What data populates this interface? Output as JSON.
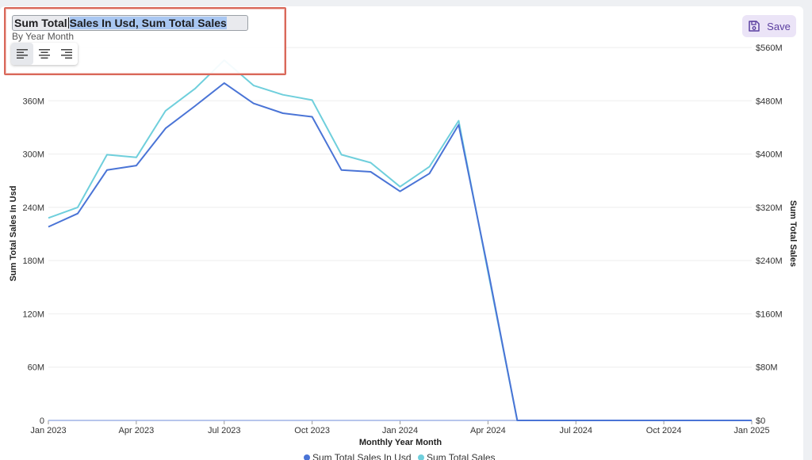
{
  "title_editor": {
    "title_plain": "Sum Total",
    "title_selected": "Sales In Usd, Sum Total Sales",
    "subtitle": "By Year Month",
    "align_options": [
      "align-left",
      "align-center",
      "align-right"
    ],
    "align_active": "align-left"
  },
  "toolbar": {
    "save_label": "Save"
  },
  "colors": {
    "series1": "#4a74d6",
    "series2": "#6fcfdc",
    "grid": "#eeeeee",
    "save_bg": "#ebe4f7",
    "save_text": "#5b3fa0",
    "highlight": "#d9685a"
  },
  "chart_data": {
    "type": "line",
    "title": "Sum Total Sales In Usd, Sum Total Sales",
    "subtitle": "By Year Month",
    "xlabel": "Monthly Year Month",
    "ylabel_left": "Sum Total Sales In Usd",
    "ylabel_right": "Sum Total Sales",
    "x": [
      "2023-01",
      "2023-02",
      "2023-03",
      "2023-04",
      "2023-05",
      "2023-06",
      "2023-07",
      "2023-08",
      "2023-09",
      "2023-10",
      "2023-11",
      "2023-12",
      "2024-01",
      "2024-02",
      "2024-03",
      "2024-04",
      "2024-05",
      "2024-06",
      "2024-07",
      "2024-08",
      "2024-09",
      "2024-10",
      "2024-11",
      "2024-12",
      "2025-01"
    ],
    "x_ticks": [
      "Jan 2023",
      "Apr 2023",
      "Jul 2023",
      "Oct 2023",
      "Jan 2024",
      "Apr 2024",
      "Jul 2024",
      "Oct 2024",
      "Jan 2025"
    ],
    "y_left_ticks": [
      "0",
      "60M",
      "120M",
      "180M",
      "240M",
      "300M",
      "360M"
    ],
    "y_right_ticks": [
      "$0",
      "$80M",
      "$160M",
      "$240M",
      "$320M",
      "$400M",
      "$480M",
      "$560M"
    ],
    "ylim_left": [
      0,
      420000000
    ],
    "ylim_right": [
      0,
      560000000
    ],
    "series": [
      {
        "name": "Sum Total Sales In Usd",
        "axis": "left",
        "values": [
          218000000,
          233000000,
          282000000,
          287000000,
          329000000,
          354000000,
          380000000,
          357000000,
          346000000,
          342000000,
          282000000,
          280000000,
          258000000,
          278000000,
          333000000,
          170000000,
          0,
          0,
          0,
          0,
          0,
          0,
          0,
          0,
          0
        ]
      },
      {
        "name": "Sum Total Sales",
        "axis": "right",
        "values": [
          304000000,
          320000000,
          399000000,
          395000000,
          465000000,
          498000000,
          541000000,
          503000000,
          489000000,
          481000000,
          399000000,
          387000000,
          351000000,
          381000000,
          450000000,
          223000000,
          0,
          0,
          0,
          0,
          0,
          0,
          0,
          0,
          0
        ]
      }
    ],
    "legend_position": "bottom",
    "grid": true
  }
}
